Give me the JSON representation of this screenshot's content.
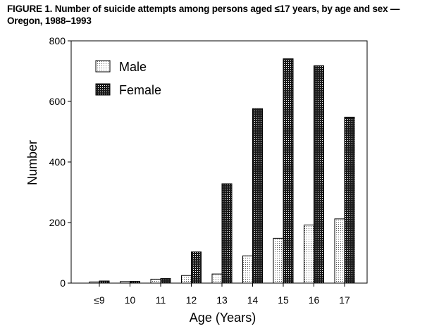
{
  "figure": {
    "title": "FIGURE 1. Number of suicide attempts among persons aged ≤17 years, by age and sex — Oregon, 1988–1993"
  },
  "chart_data": {
    "type": "bar",
    "title": "FIGURE 1. Number of suicide attempts among persons aged ≤17 years, by age and sex — Oregon, 1988–1993",
    "xlabel": "Age (Years)",
    "ylabel": "Number",
    "categories": [
      "≤9",
      "10",
      "11",
      "12",
      "13",
      "14",
      "15",
      "16",
      "17"
    ],
    "series": [
      {
        "name": "Male",
        "values": [
          4,
          5,
          13,
          25,
          30,
          90,
          148,
          192,
          212
        ],
        "fill": "light-dotted"
      },
      {
        "name": "Female",
        "values": [
          7,
          6,
          15,
          103,
          328,
          576,
          741,
          718,
          548
        ],
        "fill": "dark-dotted"
      }
    ],
    "ylim": [
      0,
      800
    ],
    "yticks": [
      0,
      200,
      400,
      600,
      800
    ],
    "grid": false,
    "legend": "top-left"
  }
}
